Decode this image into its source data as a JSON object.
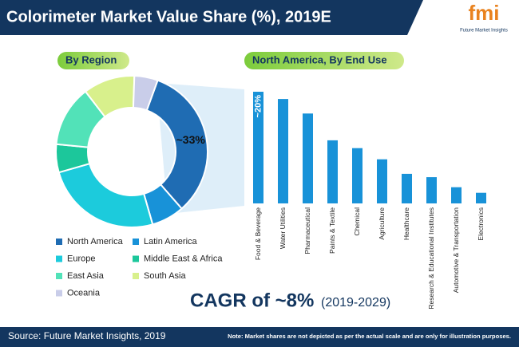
{
  "header": {
    "title": "Colorimeter Market Value Share (%), 2019E",
    "logo": "fmi",
    "logo_tagline": "Future Market Insights"
  },
  "chart_data": [
    {
      "type": "donut",
      "title": "By Region",
      "categories": [
        "North America",
        "Latin America",
        "Europe",
        "Middle East & Africa",
        "East Asia",
        "South Asia",
        "Oceania"
      ],
      "values": [
        33,
        7,
        25,
        6,
        13,
        11,
        5
      ],
      "value_labels": [
        "~33%",
        null,
        null,
        null,
        null,
        null,
        null
      ],
      "colors": [
        "#1f6cb3",
        "#1892d8",
        "#1ccbdc",
        "#1cc79b",
        "#52e2b8",
        "#d8f08c",
        "#c9cde9"
      ]
    },
    {
      "type": "bar",
      "title": "North America, By End Use",
      "categories": [
        "Food & Beverage",
        "Water Utilities",
        "Pharmaceutical",
        "Paints & Textile",
        "Chemical",
        "Agriculture",
        "Healthcare",
        "Research & Educational Institutes",
        "Automotive & Transportation",
        "Electronics"
      ],
      "values": [
        20,
        18.7,
        16.1,
        11.3,
        9.9,
        7.9,
        5.3,
        4.7,
        2.9,
        1.9
      ],
      "value_labels": [
        "~20%",
        null,
        null,
        null,
        null,
        null,
        null,
        null,
        null,
        null
      ],
      "color": "#1892d8"
    }
  ],
  "callout": {
    "cagr": "CAGR of ~8%",
    "period": "(2019-2029)"
  },
  "footer": {
    "source": "Source: Future Market Insights, 2019",
    "note": "Note: Market shares are not depicted as per the actual scale and are only for illustration purposes."
  }
}
